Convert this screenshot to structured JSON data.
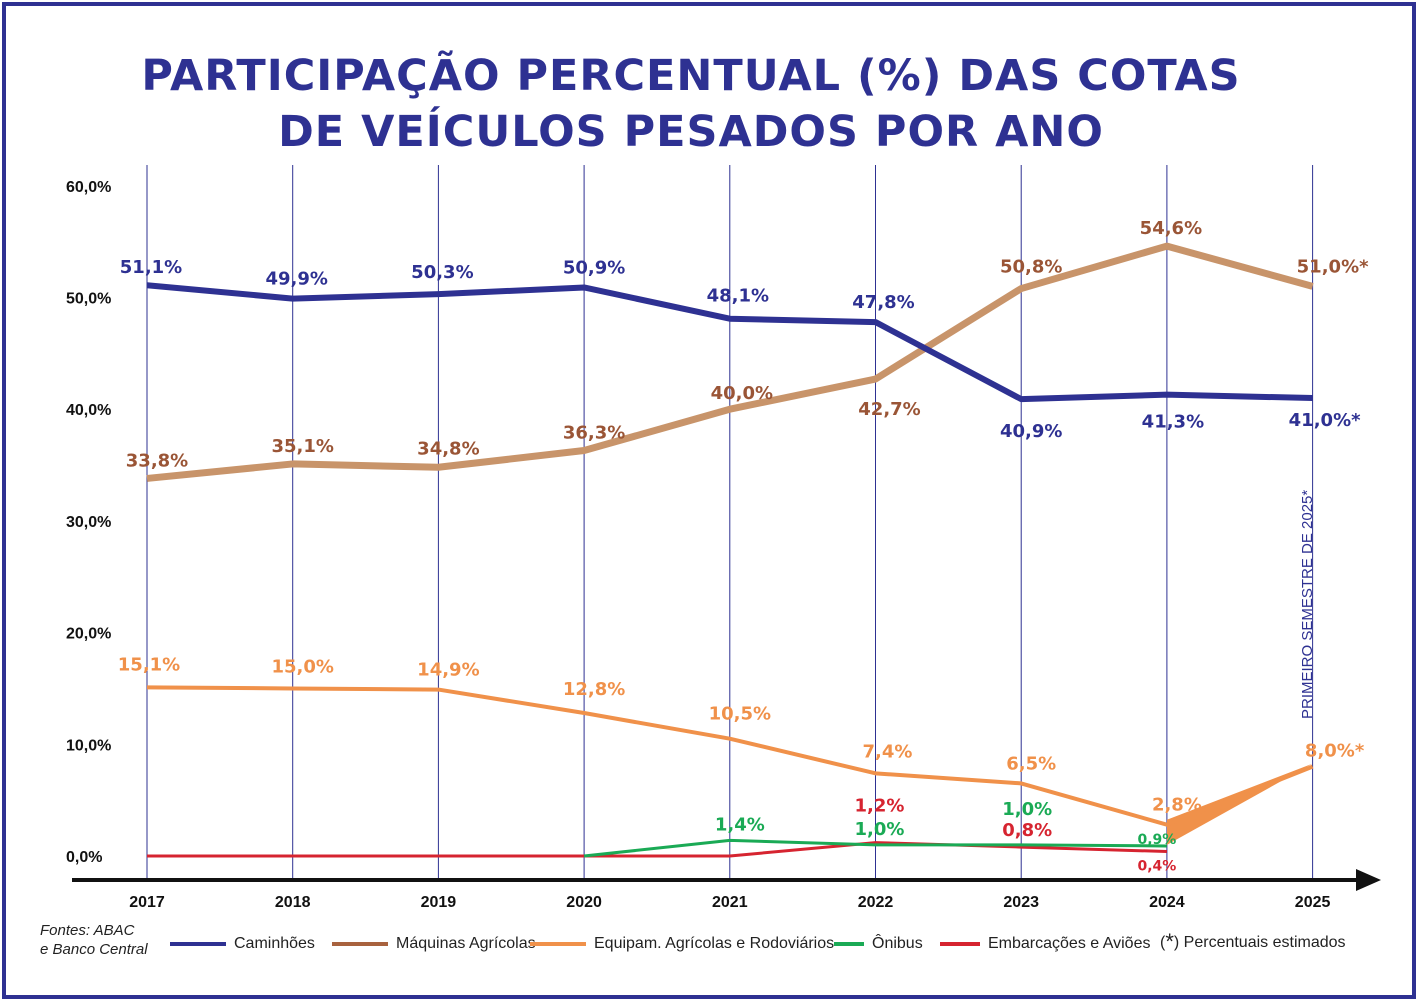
{
  "title_line1": "PARTICIPAÇÃO PERCENTUAL (%)  DAS COTAS",
  "title_line2": "DE VEÍCULOS PESADOS POR ANO",
  "sources_line1": "Fontes: ABAC",
  "sources_line2": "e Banco Central",
  "note_star": "*",
  "note_text": ") Percentuais estimados",
  "note_paren": "(",
  "vertical_annotation": "PRIMEIRO SEMESTRE DE 2025*",
  "colors": {
    "frame": "#2e3192",
    "caminhoes": "#2e3192",
    "maquinas": "#c8946a",
    "maquinas_label": "#9a5536",
    "equipam": "#f0914a",
    "onibus": "#1aaa55",
    "embarcacoes": "#d62430",
    "axis": "#111111",
    "gridline": "#2e3192"
  },
  "chart_data": {
    "type": "line",
    "x": [
      "2017",
      "2018",
      "2019",
      "2020",
      "2021",
      "2022",
      "2023",
      "2024",
      "2025"
    ],
    "yticks": [
      "60,0%",
      "50,0%",
      "40,0%",
      "30,0%",
      "20,0%",
      "10,0%",
      "0,0%"
    ],
    "ylim": [
      0,
      60
    ],
    "series": [
      {
        "name": "Caminhões",
        "key": "caminhoes",
        "values": [
          51.1,
          49.9,
          50.3,
          50.9,
          48.1,
          47.8,
          40.9,
          41.3,
          41.0
        ],
        "labels": [
          "51,1%",
          "49,9%",
          "50,3%",
          "50,9%",
          "48,1%",
          "47,8%",
          "40,9%",
          "41,3%",
          "41,0%*"
        ]
      },
      {
        "name": "Máquinas Agrícolas",
        "key": "maquinas",
        "values": [
          33.8,
          35.1,
          34.8,
          36.3,
          40.0,
          42.7,
          50.8,
          54.6,
          51.0
        ],
        "labels": [
          "33,8%",
          "35,1%",
          "34,8%",
          "36,3%",
          "40,0%",
          "42,7%",
          "50,8%",
          "54,6%",
          "51,0%*"
        ]
      },
      {
        "name": "Equipam. Agrícolas e Rodoviários",
        "key": "equipam",
        "values": [
          15.1,
          15.0,
          14.9,
          12.8,
          10.5,
          7.4,
          6.5,
          2.8,
          8.0
        ],
        "labels": [
          "15,1%",
          "15,0%",
          "14,9%",
          "12,8%",
          "10,5%",
          "7,4%",
          "6,5%",
          "2,8%",
          "8,0%*"
        ]
      },
      {
        "name": "Ônibus",
        "key": "onibus",
        "values": [
          null,
          null,
          null,
          0.0,
          1.4,
          1.0,
          1.0,
          0.9,
          null
        ],
        "labels": [
          "",
          "",
          "",
          "",
          "1,4%",
          "1,0%",
          "1,0%",
          "0,9%",
          ""
        ]
      },
      {
        "name": "Embarcações e Aviões",
        "key": "embarcacoes",
        "values": [
          0.0,
          0.0,
          0.0,
          0.0,
          0.0,
          1.2,
          0.8,
          0.4,
          null
        ],
        "labels": [
          "",
          "",
          "",
          "",
          "",
          "1,2%",
          "0,8%",
          "0,4%",
          ""
        ]
      }
    ]
  }
}
